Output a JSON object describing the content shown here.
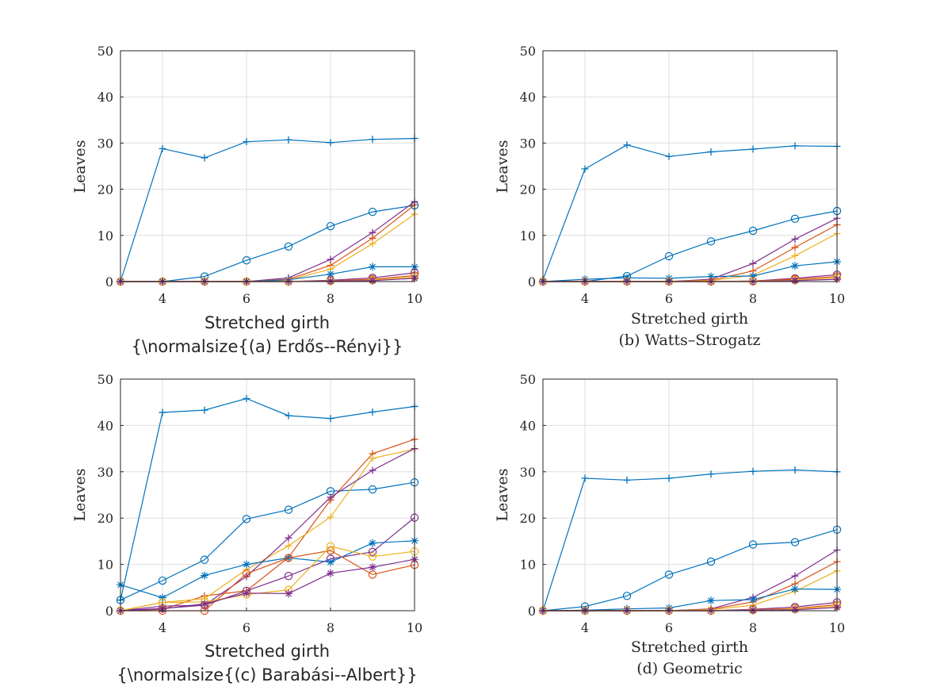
{
  "chart_data": [
    {
      "type": "line",
      "caption": "{\\normalsize{(a) Erdős--Rényi}}",
      "xlabel": "Stretched girth",
      "ylabel": "Leaves",
      "xlim": [
        3,
        10
      ],
      "ylim": [
        0,
        50
      ],
      "xticks": [
        4,
        6,
        8,
        10
      ],
      "yticks": [
        0,
        10,
        20,
        30,
        40,
        50
      ],
      "grid": true,
      "x": [
        3,
        4,
        5,
        6,
        7,
        8,
        9,
        10
      ],
      "series": [
        {
          "color": "#0072BD",
          "marker": "+",
          "values": [
            0,
            28.8,
            26.8,
            30.3,
            30.7,
            30.1,
            30.8,
            31.0
          ]
        },
        {
          "color": "#0072BD",
          "marker": "o",
          "values": [
            0,
            0,
            1.1,
            4.6,
            7.6,
            12.0,
            15.1,
            16.5
          ]
        },
        {
          "color": "#7E2F8E",
          "marker": "+",
          "values": [
            0,
            0,
            0,
            0,
            0.8,
            4.8,
            10.6,
            17.3
          ]
        },
        {
          "color": "#D95319",
          "marker": "+",
          "values": [
            0,
            0,
            0,
            0,
            0.5,
            3.5,
            9.4,
            16.6
          ]
        },
        {
          "color": "#EDB120",
          "marker": "+",
          "values": [
            0,
            0,
            0,
            0,
            0.3,
            2.7,
            8.2,
            14.6
          ]
        },
        {
          "color": "#0072BD",
          "marker": "*",
          "values": [
            0,
            0,
            0,
            0,
            0.4,
            1.6,
            3.2,
            3.2
          ]
        },
        {
          "color": "#7E2F8E",
          "marker": "o",
          "values": [
            0,
            0,
            0,
            0,
            0,
            0.3,
            0.8,
            1.9
          ]
        },
        {
          "color": "#D95319",
          "marker": "o",
          "values": [
            0,
            0,
            0,
            0,
            0,
            0.2,
            0.5,
            1.3
          ]
        },
        {
          "color": "#EDB120",
          "marker": "o",
          "values": [
            0,
            0,
            0,
            0,
            0,
            0.1,
            0.3,
            1.0
          ]
        },
        {
          "color": "#7E2F8E",
          "marker": "*",
          "values": [
            0,
            0,
            0,
            0,
            0,
            0.1,
            0.2,
            0.7
          ]
        }
      ]
    },
    {
      "type": "line",
      "caption": "(b) Watts–Strogatz",
      "xlabel": "Stretched girth",
      "ylabel": "Leaves",
      "xlim": [
        3,
        10
      ],
      "ylim": [
        0,
        50
      ],
      "xticks": [
        4,
        6,
        8,
        10
      ],
      "yticks": [
        0,
        10,
        20,
        30,
        40,
        50
      ],
      "grid": true,
      "x": [
        3,
        4,
        5,
        6,
        7,
        8,
        9,
        10
      ],
      "series": [
        {
          "color": "#0072BD",
          "marker": "+",
          "values": [
            0.4,
            24.4,
            29.6,
            27.1,
            28.1,
            28.7,
            29.4,
            29.3
          ]
        },
        {
          "color": "#0072BD",
          "marker": "o",
          "values": [
            0,
            0,
            1.2,
            5.5,
            8.7,
            11.0,
            13.6,
            15.3
          ]
        },
        {
          "color": "#7E2F8E",
          "marker": "+",
          "values": [
            0,
            0,
            0,
            0,
            0.5,
            3.9,
            9.2,
            13.7
          ]
        },
        {
          "color": "#D95319",
          "marker": "+",
          "values": [
            0,
            0,
            0,
            0,
            0.3,
            2.3,
            7.4,
            12.3
          ]
        },
        {
          "color": "#EDB120",
          "marker": "+",
          "values": [
            0,
            0,
            0,
            0,
            0.2,
            1.4,
            5.6,
            10.4
          ]
        },
        {
          "color": "#0072BD",
          "marker": "*",
          "values": [
            0,
            0.5,
            0.8,
            0.7,
            1.1,
            1.2,
            3.4,
            4.3
          ]
        },
        {
          "color": "#7E2F8E",
          "marker": "o",
          "values": [
            0,
            0,
            0,
            0,
            0,
            0.1,
            0.7,
            1.5
          ]
        },
        {
          "color": "#D95319",
          "marker": "o",
          "values": [
            0,
            0,
            0,
            0,
            0,
            0.1,
            0.5,
            1.1
          ]
        },
        {
          "color": "#EDB120",
          "marker": "o",
          "values": [
            0,
            0,
            0,
            0,
            0,
            0,
            0.3,
            0.8
          ]
        },
        {
          "color": "#7E2F8E",
          "marker": "*",
          "values": [
            0,
            0,
            0,
            0,
            0,
            0,
            0.2,
            0.5
          ]
        }
      ]
    },
    {
      "type": "line",
      "caption": "{\\normalsize{(c) Barabási--Albert}}",
      "xlabel": "Stretched girth",
      "ylabel": "Leaves",
      "xlim": [
        3,
        10
      ],
      "ylim": [
        0,
        50
      ],
      "xticks": [
        4,
        6,
        8,
        10
      ],
      "yticks": [
        0,
        10,
        20,
        30,
        40,
        50
      ],
      "grid": true,
      "x": [
        3,
        4,
        5,
        6,
        7,
        8,
        9,
        10
      ],
      "series": [
        {
          "color": "#0072BD",
          "marker": "+",
          "values": [
            2.3,
            42.8,
            43.3,
            45.8,
            42.1,
            41.5,
            42.9,
            44.1
          ]
        },
        {
          "color": "#0072BD",
          "marker": "o",
          "values": [
            2.3,
            6.5,
            11.0,
            19.8,
            21.8,
            25.8,
            26.2,
            27.7
          ]
        },
        {
          "color": "#D95319",
          "marker": "+",
          "values": [
            0,
            0.3,
            3.2,
            4.3,
            11.5,
            23.9,
            33.9,
            37.0
          ]
        },
        {
          "color": "#EDB120",
          "marker": "+",
          "values": [
            0,
            1.8,
            2.6,
            8.9,
            14.0,
            20.2,
            32.9,
            34.9
          ]
        },
        {
          "color": "#7E2F8E",
          "marker": "+",
          "values": [
            0,
            1.0,
            1.2,
            7.4,
            15.7,
            24.5,
            30.3,
            35.0
          ]
        },
        {
          "color": "#7E2F8E",
          "marker": "o",
          "values": [
            0,
            0.5,
            1.2,
            4.3,
            7.5,
            11.2,
            12.7,
            20.1
          ]
        },
        {
          "color": "#0072BD",
          "marker": "*",
          "values": [
            5.6,
            2.8,
            7.6,
            10.0,
            11.4,
            10.5,
            14.6,
            15.1
          ]
        },
        {
          "color": "#D95319",
          "marker": "o",
          "values": [
            0,
            0,
            0,
            8.0,
            11.4,
            13.0,
            7.8,
            9.9
          ]
        },
        {
          "color": "#EDB120",
          "marker": "o",
          "values": [
            0,
            1.8,
            1.9,
            3.5,
            4.5,
            13.9,
            11.7,
            12.8
          ]
        },
        {
          "color": "#7E2F8E",
          "marker": "*",
          "values": [
            0,
            0.4,
            1.5,
            3.8,
            3.7,
            8.1,
            9.4,
            11.1
          ]
        }
      ]
    },
    {
      "type": "line",
      "caption": "(d) Geometric",
      "xlabel": "Stretched girth",
      "ylabel": "Leaves",
      "xlim": [
        3,
        10
      ],
      "ylim": [
        0,
        50
      ],
      "xticks": [
        4,
        6,
        8,
        10
      ],
      "yticks": [
        0,
        10,
        20,
        30,
        40,
        50
      ],
      "grid": true,
      "x": [
        3,
        4,
        5,
        6,
        7,
        8,
        9,
        10
      ],
      "series": [
        {
          "color": "#0072BD",
          "marker": "+",
          "values": [
            0,
            28.6,
            28.2,
            28.6,
            29.5,
            30.1,
            30.4,
            30.0
          ]
        },
        {
          "color": "#0072BD",
          "marker": "o",
          "values": [
            0,
            0.9,
            3.2,
            7.8,
            10.6,
            14.3,
            14.8,
            17.5
          ]
        },
        {
          "color": "#7E2F8E",
          "marker": "+",
          "values": [
            0,
            0,
            0,
            0,
            0.4,
            2.9,
            7.5,
            13.1
          ]
        },
        {
          "color": "#D95319",
          "marker": "+",
          "values": [
            0,
            0,
            0,
            0,
            0.3,
            1.9,
            5.8,
            10.6
          ]
        },
        {
          "color": "#EDB120",
          "marker": "+",
          "values": [
            0,
            0,
            0,
            0,
            0.2,
            1.2,
            4.2,
            8.6
          ]
        },
        {
          "color": "#0072BD",
          "marker": "*",
          "values": [
            0,
            0.1,
            0.4,
            0.6,
            2.2,
            2.4,
            4.7,
            4.6
          ]
        },
        {
          "color": "#7E2F8E",
          "marker": "o",
          "values": [
            0,
            0,
            0,
            0,
            0,
            0.3,
            0.8,
            1.8
          ]
        },
        {
          "color": "#D95319",
          "marker": "o",
          "values": [
            0,
            0,
            0,
            0,
            0,
            0.2,
            0.5,
            1.3
          ]
        },
        {
          "color": "#EDB120",
          "marker": "o",
          "values": [
            0,
            0,
            0,
            0,
            0,
            0.1,
            0.4,
            1.0
          ]
        },
        {
          "color": "#7E2F8E",
          "marker": "*",
          "values": [
            0,
            0,
            0,
            0,
            0,
            0.1,
            0.2,
            0.7
          ]
        }
      ]
    }
  ]
}
